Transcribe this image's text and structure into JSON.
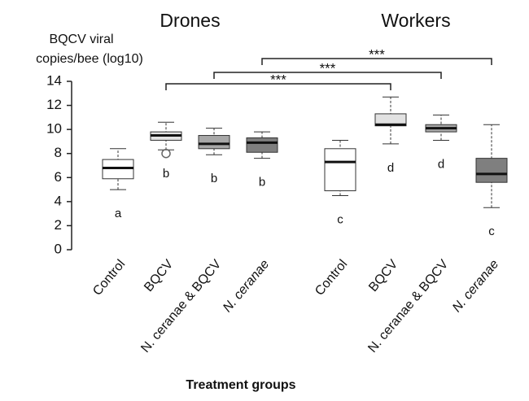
{
  "chart_data": {
    "type": "box",
    "y_label_lines": [
      "BQCV viral",
      "copies/bee (log10)"
    ],
    "x_label": "Treatment groups",
    "groups": [
      {
        "name": "Drones",
        "members": [
          0,
          1,
          2,
          3
        ]
      },
      {
        "name": "Workers",
        "members": [
          4,
          5,
          6,
          7
        ]
      }
    ],
    "categories": [
      "Control",
      "BQCV",
      "N. ceranae & BQCV",
      "N. ceranae",
      "Control",
      "BQCV",
      "N. ceranae & BQCV",
      "N. ceranae"
    ],
    "italic": [
      false,
      false,
      false,
      true,
      false,
      false,
      false,
      true
    ],
    "boxes": [
      {
        "low": 5.0,
        "q1": 5.9,
        "median": 6.8,
        "q3": 7.5,
        "high": 8.4,
        "outliers": [],
        "color": "#ffffff",
        "letter": "a"
      },
      {
        "low": 8.3,
        "q1": 9.1,
        "median": 9.5,
        "q3": 9.8,
        "high": 10.6,
        "outliers": [
          8.0
        ],
        "color": "#e2e2e2",
        "letter": "b"
      },
      {
        "low": 7.9,
        "q1": 8.4,
        "median": 8.8,
        "q3": 9.5,
        "high": 10.1,
        "outliers": [],
        "color": "#a8a8a8",
        "letter": "b"
      },
      {
        "low": 7.6,
        "q1": 8.1,
        "median": 8.9,
        "q3": 9.3,
        "high": 9.8,
        "outliers": [],
        "color": "#7f7f7f",
        "letter": "b"
      },
      {
        "low": 4.5,
        "q1": 4.9,
        "median": 7.3,
        "q3": 8.4,
        "high": 9.1,
        "outliers": [],
        "color": "#ffffff",
        "letter": "c"
      },
      {
        "low": 8.8,
        "q1": 10.3,
        "median": 10.4,
        "q3": 11.3,
        "high": 12.7,
        "outliers": [],
        "color": "#e2e2e2",
        "letter": "d"
      },
      {
        "low": 9.1,
        "q1": 9.8,
        "median": 10.1,
        "q3": 10.4,
        "high": 11.2,
        "outliers": [],
        "color": "#a8a8a8",
        "letter": "d"
      },
      {
        "low": 3.5,
        "q1": 5.6,
        "median": 6.3,
        "q3": 7.6,
        "high": 10.4,
        "outliers": [],
        "color": "#7f7f7f",
        "letter": "c"
      }
    ],
    "comparisons": [
      {
        "from": 1,
        "to": 5,
        "label": "***"
      },
      {
        "from": 2,
        "to": 6,
        "label": "***"
      },
      {
        "from": 3,
        "to": 7,
        "label": "***"
      }
    ],
    "ylim": [
      0,
      14
    ],
    "yticks": [
      0,
      2,
      4,
      6,
      8,
      10,
      12,
      14
    ]
  }
}
